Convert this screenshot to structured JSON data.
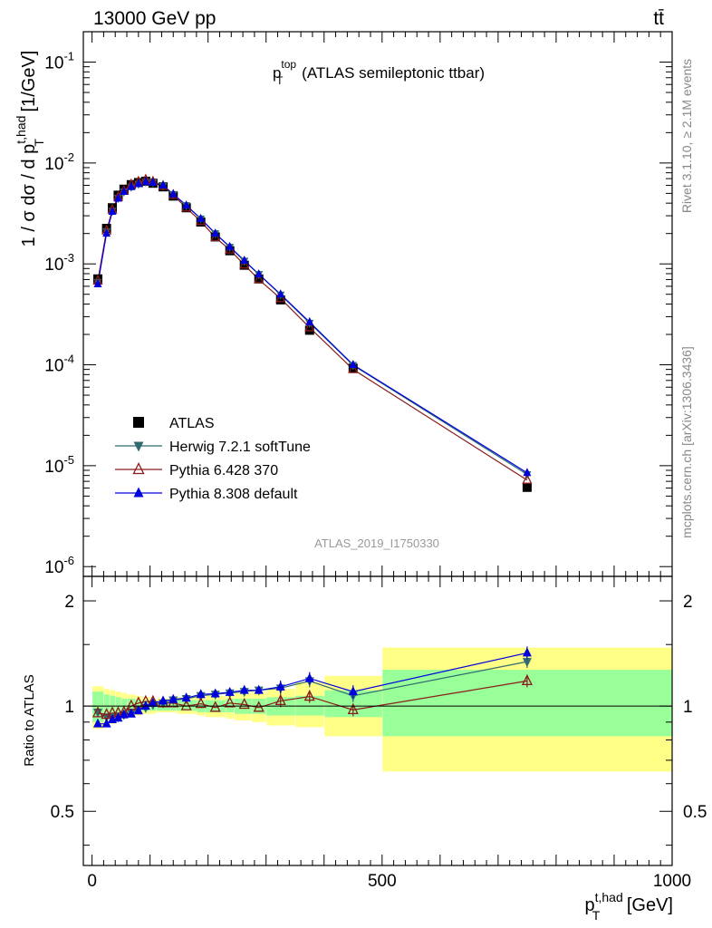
{
  "header": {
    "energy": "13000 GeV pp",
    "process": "tt̄"
  },
  "side_labels": {
    "rivet": "Rivet 3.1.10, ≥ 2.1M events",
    "mcplots": "mcplots.cern.ch [arXiv:1306.3436]"
  },
  "colors": {
    "atlas": "#000000",
    "herwig": "#2f6b6f",
    "pythia6": "#8b1a1a",
    "pythia8": "#0000dd",
    "band_inner": "#99ff99",
    "band_outer": "#ffff88"
  },
  "chart_data": [
    {
      "type": "scatter",
      "panel": "main",
      "title": "p_T^top (ATLAS semileptonic ttbar)",
      "ylabel": "1 / σ dσ / d p_T^{t,had} [1/GeV]",
      "yscale": "log",
      "ylim": [
        8e-07,
        0.2
      ],
      "ytick_labels": [
        "10^{-6}",
        "10^{-5}",
        "10^{-4}",
        "10^{-3}",
        "10^{-2}",
        "10^{-1}"
      ],
      "analysis_id": "ATLAS_2019_I1750330",
      "legend_placement": "lower-left",
      "x": [
        10,
        25,
        35,
        45,
        55,
        67.5,
        80,
        92.5,
        105,
        122.5,
        140,
        162.5,
        187.5,
        212.5,
        237.5,
        262.5,
        287.5,
        325,
        375,
        450,
        750
      ],
      "series": [
        {
          "name": "ATLAS",
          "marker": "square",
          "values": [
            0.00071,
            0.00225,
            0.0036,
            0.0048,
            0.0055,
            0.0061,
            0.0064,
            0.0066,
            0.0063,
            0.0058,
            0.0047,
            0.0036,
            0.0026,
            0.00185,
            0.00135,
            0.00097,
            0.00071,
            0.00044,
            0.00022,
            9.25e-05,
            6.1e-06
          ]
        },
        {
          "name": "Herwig 7.2.1 softTune",
          "marker": "triangle-down",
          "values": [
            0.00066,
            0.0021,
            0.00335,
            0.0045,
            0.0052,
            0.0058,
            0.0062,
            0.0065,
            0.0064,
            0.0059,
            0.0049,
            0.0038,
            0.0028,
            0.002,
            0.00147,
            0.00107,
            0.00079,
            0.000495,
            0.00026,
            9.9e-05,
            8.2e-06
          ]
        },
        {
          "name": "Pythia 6.428 370",
          "marker": "triangle-open",
          "values": [
            0.00068,
            0.00213,
            0.00343,
            0.00458,
            0.00528,
            0.0061,
            0.0065,
            0.0068,
            0.0065,
            0.0059,
            0.0048,
            0.0036,
            0.00264,
            0.00183,
            0.00138,
            0.00098,
            0.0007,
            0.000455,
            0.000234,
            9e-05,
            7.2e-06
          ]
        },
        {
          "name": "Pythia 8.308 default",
          "marker": "triangle-up",
          "values": [
            0.00063,
            0.002,
            0.0033,
            0.00445,
            0.0052,
            0.0058,
            0.0062,
            0.0065,
            0.0064,
            0.006,
            0.0049,
            0.0038,
            0.0028,
            0.002,
            0.00148,
            0.00108,
            0.00079,
            0.0005,
            0.000265,
            0.0001,
            8.5e-06
          ]
        }
      ]
    },
    {
      "type": "scatter",
      "panel": "ratio",
      "ylabel": "Ratio to ATLAS",
      "xlabel": "p_T^{t,had} [GeV]",
      "xlim": [
        -15,
        1000
      ],
      "ylim": [
        0.35,
        2.35
      ],
      "x_ticks": [
        0,
        500,
        1000
      ],
      "y_ticks": [
        0.5,
        1,
        2
      ],
      "x": [
        10,
        25,
        35,
        45,
        55,
        67.5,
        80,
        92.5,
        105,
        122.5,
        140,
        162.5,
        187.5,
        212.5,
        237.5,
        262.5,
        287.5,
        325,
        375,
        450,
        750
      ],
      "bands": {
        "edges": [
          0,
          20,
          30,
          40,
          50,
          60,
          75,
          85,
          100,
          110,
          135,
          145,
          180,
          195,
          230,
          245,
          275,
          300,
          350,
          400,
          500,
          1000
        ],
        "inner": [
          [
            0.9,
            1.1
          ],
          [
            0.92,
            1.08
          ],
          [
            0.93,
            1.07
          ],
          [
            0.95,
            1.06
          ],
          [
            0.95,
            1.05
          ],
          [
            0.96,
            1.05
          ],
          [
            0.96,
            1.04
          ],
          [
            0.97,
            1.04
          ],
          [
            0.97,
            1.03
          ],
          [
            0.97,
            1.03
          ],
          [
            0.97,
            1.03
          ],
          [
            0.97,
            1.04
          ],
          [
            0.96,
            1.04
          ],
          [
            0.96,
            1.04
          ],
          [
            0.96,
            1.05
          ],
          [
            0.95,
            1.05
          ],
          [
            0.95,
            1.05
          ],
          [
            0.94,
            1.06
          ],
          [
            0.94,
            1.07
          ],
          [
            0.93,
            1.11
          ],
          [
            0.82,
            1.27
          ]
        ],
        "outer": [
          [
            0.86,
            1.14
          ],
          [
            0.88,
            1.12
          ],
          [
            0.89,
            1.11
          ],
          [
            0.91,
            1.1
          ],
          [
            0.92,
            1.09
          ],
          [
            0.93,
            1.08
          ],
          [
            0.94,
            1.07
          ],
          [
            0.95,
            1.06
          ],
          [
            0.95,
            1.05
          ],
          [
            0.96,
            1.05
          ],
          [
            0.96,
            1.05
          ],
          [
            0.95,
            1.06
          ],
          [
            0.94,
            1.07
          ],
          [
            0.93,
            1.07
          ],
          [
            0.92,
            1.08
          ],
          [
            0.91,
            1.09
          ],
          [
            0.9,
            1.1
          ],
          [
            0.88,
            1.12
          ],
          [
            0.87,
            1.17
          ],
          [
            0.82,
            1.22
          ],
          [
            0.65,
            1.47
          ]
        ]
      },
      "series": [
        {
          "name": "Herwig 7.2.1 softTune",
          "values": [
            0.96,
            0.93,
            0.93,
            0.93,
            0.945,
            0.96,
            0.98,
            0.99,
            1.01,
            1.02,
            1.04,
            1.05,
            1.07,
            1.08,
            1.09,
            1.1,
            1.11,
            1.125,
            1.18,
            1.07,
            1.34
          ]
        },
        {
          "name": "Pythia 6.428 370",
          "values": [
            0.955,
            0.945,
            0.955,
            0.955,
            0.96,
            1.0,
            1.02,
            1.03,
            1.03,
            1.02,
            1.02,
            1.0,
            1.015,
            0.99,
            1.02,
            1.01,
            0.99,
            1.035,
            1.065,
            0.975,
            1.18
          ]
        },
        {
          "name": "Pythia 8.308 default",
          "values": [
            0.89,
            0.89,
            0.915,
            0.925,
            0.945,
            0.95,
            0.97,
            1.0,
            1.02,
            1.035,
            1.045,
            1.055,
            1.08,
            1.085,
            1.095,
            1.11,
            1.11,
            1.135,
            1.2,
            1.1,
            1.42
          ]
        }
      ]
    }
  ]
}
